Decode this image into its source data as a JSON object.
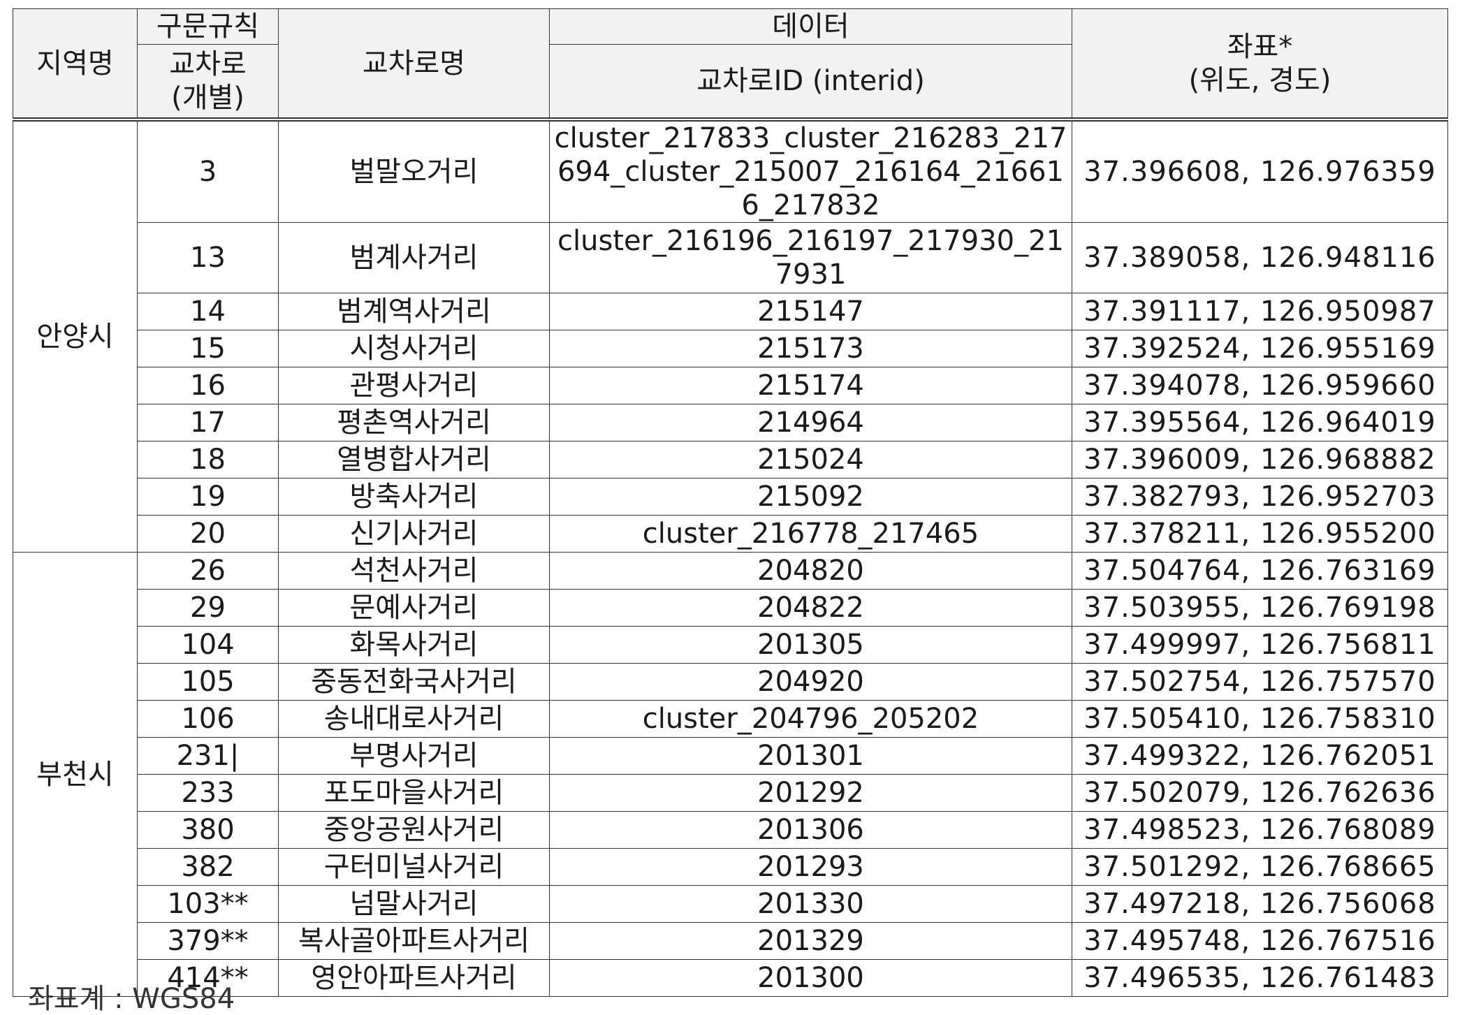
{
  "table": {
    "headers": {
      "region": "지역명",
      "syntax_rule": "구문규칙",
      "intersection_individual": "교차로\n(개별)",
      "intersection_name": "교차로명",
      "data": "데이터",
      "interid": "교차로ID (interid)",
      "coord": "좌표*\n(위도, 경도)"
    },
    "regions": [
      {
        "name": "안양시",
        "rows": [
          {
            "no": "3",
            "name": "벌말오거리",
            "interid": "cluster_217833_cluster_216283_217694_cluster_215007_216164_216616_217832",
            "coord": "37.396608, 126.976359"
          },
          {
            "no": "13",
            "name": "범계사거리",
            "interid": "cluster_216196_216197_217930_217931",
            "coord": "37.389058, 126.948116"
          },
          {
            "no": "14",
            "name": "범계역사거리",
            "interid": "215147",
            "coord": "37.391117, 126.950987"
          },
          {
            "no": "15",
            "name": "시청사거리",
            "interid": "215173",
            "coord": "37.392524, 126.955169"
          },
          {
            "no": "16",
            "name": "관평사거리",
            "interid": "215174",
            "coord": "37.394078, 126.959660"
          },
          {
            "no": "17",
            "name": "평촌역사거리",
            "interid": "214964",
            "coord": "37.395564, 126.964019"
          },
          {
            "no": "18",
            "name": "열병합사거리",
            "interid": "215024",
            "coord": "37.396009, 126.968882"
          },
          {
            "no": "19",
            "name": "방축사거리",
            "interid": "215092",
            "coord": "37.382793, 126.952703"
          },
          {
            "no": "20",
            "name": "신기사거리",
            "interid": "cluster_216778_217465",
            "coord": "37.378211, 126.955200"
          }
        ]
      },
      {
        "name": "부천시",
        "rows": [
          {
            "no": "26",
            "name": "석천사거리",
            "interid": "204820",
            "coord": "37.504764, 126.763169"
          },
          {
            "no": "29",
            "name": "문예사거리",
            "interid": "204822",
            "coord": "37.503955, 126.769198"
          },
          {
            "no": "104",
            "name": "화목사거리",
            "interid": "201305",
            "coord": "37.499997, 126.756811"
          },
          {
            "no": "105",
            "name": "중동전화국사거리",
            "interid": "204920",
            "coord": "37.502754, 126.757570"
          },
          {
            "no": "106",
            "name": "송내대로사거리",
            "interid": "cluster_204796_205202",
            "coord": "37.505410, 126.758310"
          },
          {
            "no": "231|",
            "name": "부명사거리",
            "interid": "201301",
            "coord": "37.499322, 126.762051"
          },
          {
            "no": "233",
            "name": "포도마을사거리",
            "interid": "201292",
            "coord": "37.502079, 126.762636"
          },
          {
            "no": "380",
            "name": "중앙공원사거리",
            "interid": "201306",
            "coord": "37.498523, 126.768089"
          },
          {
            "no": "382",
            "name": "구터미널사거리",
            "interid": "201293",
            "coord": "37.501292, 126.768665"
          },
          {
            "no": "103**",
            "name": "넘말사거리",
            "interid": "201330",
            "coord": "37.497218, 126.756068"
          },
          {
            "no": "379**",
            "name": "복사골아파트사거리",
            "interid": "201329",
            "coord": "37.495748, 126.767516"
          },
          {
            "no": "414**",
            "name": "영안아파트사거리",
            "interid": "201300",
            "coord": "37.496535, 126.761483"
          }
        ]
      }
    ]
  },
  "footer_fragment": "좌표계 : WGS84"
}
